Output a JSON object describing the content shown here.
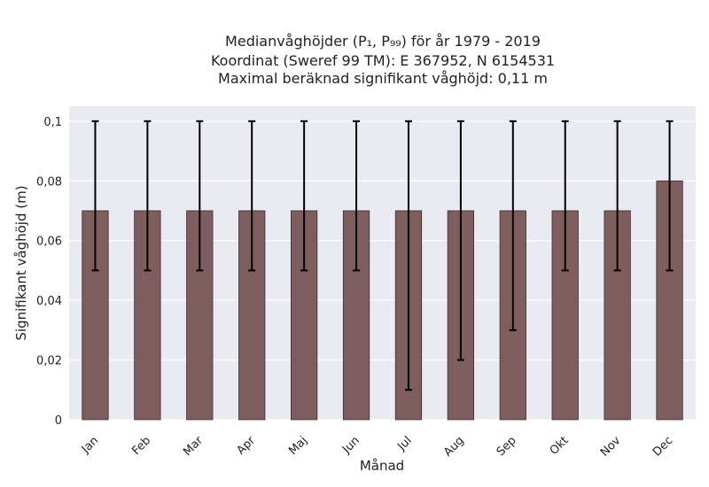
{
  "chart_data": {
    "type": "bar",
    "title_lines": [
      "Medianvåghöjder (P₁, P₉₉) för år 1979 - 2019",
      "Koordinat (Sweref 99 TM): E 367952, N 6154531",
      "Maximal beräknad signifikant våghöjd: 0,11 m"
    ],
    "xlabel": "Månad",
    "ylabel": "Signifikant våghöjd (m)",
    "categories": [
      "Jan",
      "Feb",
      "Mar",
      "Apr",
      "Maj",
      "Jun",
      "Jul",
      "Aug",
      "Sep",
      "Okt",
      "Nov",
      "Dec"
    ],
    "values": [
      0.07,
      0.07,
      0.07,
      0.07,
      0.07,
      0.07,
      0.07,
      0.07,
      0.07,
      0.07,
      0.07,
      0.08
    ],
    "error_low": [
      0.05,
      0.05,
      0.05,
      0.05,
      0.05,
      0.05,
      0.01,
      0.02,
      0.03,
      0.05,
      0.05,
      0.05
    ],
    "error_high": [
      0.1,
      0.1,
      0.1,
      0.1,
      0.1,
      0.1,
      0.1,
      0.1,
      0.1,
      0.1,
      0.1,
      0.1
    ],
    "ylim": [
      0,
      0.105
    ],
    "yticks": [
      0,
      0.02,
      0.04,
      0.06,
      0.08,
      0.1
    ],
    "ytick_labels": [
      "0",
      "0,02",
      "0,04",
      "0,06",
      "0,08",
      "0,1"
    ],
    "grid": true,
    "legend": "none",
    "colors": {
      "bar": "#7d5d5d",
      "bar_edge": "#3f2f2f",
      "error_bar": "#000000",
      "plot_background": "#eaeaf2",
      "grid": "#ffffff"
    }
  }
}
